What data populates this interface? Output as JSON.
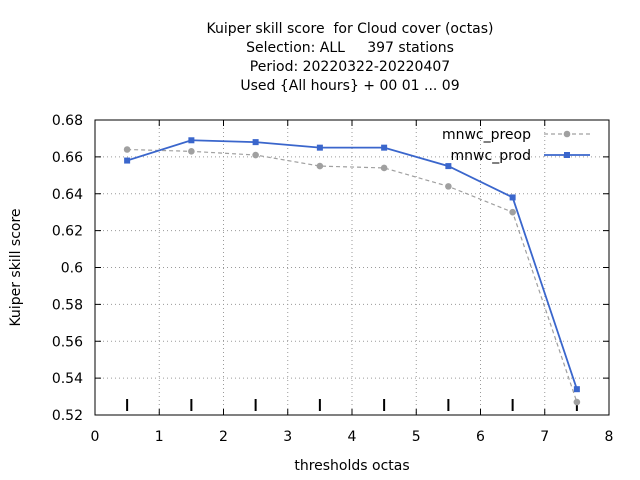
{
  "chart_data": {
    "type": "line",
    "title_lines": [
      "Kuiper skill score  for Cloud cover (octas)",
      "Selection: ALL     397 stations",
      "Period: 20220322-20220407",
      "Used {All hours} + 00 01 ... 09"
    ],
    "xlabel": "thresholds octas",
    "ylabel": "Kuiper skill score",
    "xlim": [
      0,
      8
    ],
    "ylim": [
      0.52,
      0.68
    ],
    "xticks": [
      0,
      1,
      2,
      3,
      4,
      5,
      6,
      7,
      8
    ],
    "xtick_labels": [
      "0",
      "1",
      "2",
      "3",
      "4",
      "5",
      "6",
      "7",
      "8"
    ],
    "yticks": [
      0.52,
      0.54,
      0.56,
      0.58,
      0.6,
      0.62,
      0.64,
      0.66,
      0.68
    ],
    "ytick_labels": [
      "0.52",
      "0.54",
      "0.56",
      "0.58",
      "0.6",
      "0.62",
      "0.64",
      "0.66",
      "0.68"
    ],
    "grid": true,
    "legend_position": "top-right",
    "x": [
      0.5,
      1.5,
      2.5,
      3.5,
      4.5,
      5.5,
      6.5,
      7.5
    ],
    "series": [
      {
        "name": "mnwc_preop",
        "color": "#a0a0a0",
        "style": "dashed",
        "values": [
          0.664,
          0.663,
          0.661,
          0.655,
          0.654,
          0.644,
          0.63,
          0.527
        ]
      },
      {
        "name": "mnwc_prod",
        "color": "#3a66cc",
        "style": "solid",
        "values": [
          0.658,
          0.669,
          0.668,
          0.665,
          0.665,
          0.655,
          0.638,
          0.534
        ]
      }
    ]
  }
}
